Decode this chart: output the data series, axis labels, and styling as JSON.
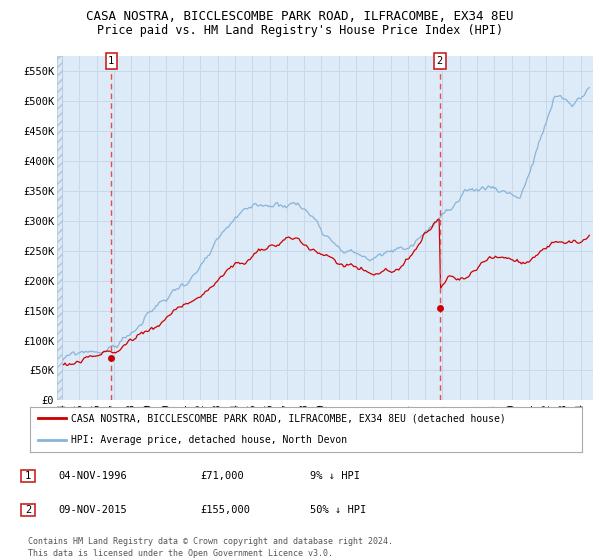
{
  "title": "CASA NOSTRA, BICCLESCOMBE PARK ROAD, ILFRACOMBE, EX34 8EU",
  "subtitle": "Price paid vs. HM Land Registry's House Price Index (HPI)",
  "ylim": [
    0,
    575000
  ],
  "yticks": [
    0,
    50000,
    100000,
    150000,
    200000,
    250000,
    300000,
    350000,
    400000,
    450000,
    500000,
    550000
  ],
  "ytick_labels": [
    "£0",
    "£50K",
    "£100K",
    "£150K",
    "£200K",
    "£250K",
    "£300K",
    "£350K",
    "£400K",
    "£450K",
    "£500K",
    "£550K"
  ],
  "hpi_color": "#8ab4d8",
  "price_color": "#cc0000",
  "bg_color": "#ddeaf7",
  "grid_color": "#c8d8e8",
  "sale1_date": 1996.84,
  "sale1_price": 71000,
  "sale2_date": 2015.85,
  "sale2_price": 155000,
  "legend_label1": "CASA NOSTRA, BICCLESCOMBE PARK ROAD, ILFRACOMBE, EX34 8EU (detached house)",
  "legend_label2": "HPI: Average price, detached house, North Devon",
  "note1_date": "04-NOV-1996",
  "note1_price": "£71,000",
  "note1_hpi": "9% ↓ HPI",
  "note2_date": "09-NOV-2015",
  "note2_price": "£155,000",
  "note2_hpi": "50% ↓ HPI",
  "footer": "Contains HM Land Registry data © Crown copyright and database right 2024.\nThis data is licensed under the Open Government Licence v3.0.",
  "title_fontsize": 9,
  "subtitle_fontsize": 8.5,
  "xstart": 1993.7,
  "xend": 2024.7
}
